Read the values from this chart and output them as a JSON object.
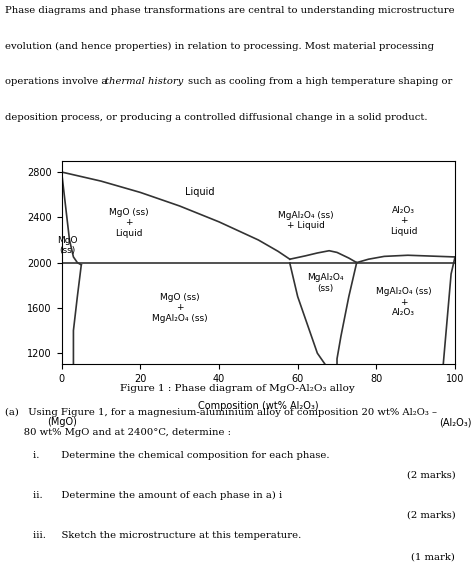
{
  "fig_caption": "Figure 1 : Phase diagram of MgO-Al₂O₃ alloy",
  "xlim": [
    0,
    100
  ],
  "ylim": [
    1100,
    2900
  ],
  "yticks": [
    1200,
    1600,
    2000,
    2400,
    2800
  ],
  "xticks": [
    0,
    20,
    40,
    60,
    80,
    100
  ],
  "xlabel_main": "Composition (wt% Al₂O₃)",
  "xlabel_left": "(MgO)",
  "xlabel_right": "(Al₂O₃)",
  "bg_color": "#ffffff",
  "line_color": "#333333"
}
